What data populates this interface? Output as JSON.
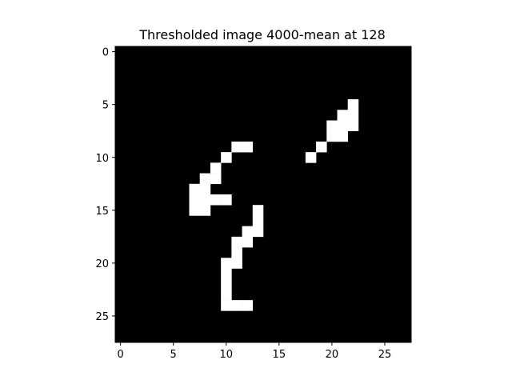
{
  "chart_data": {
    "type": "heatmap",
    "title": "Thresholded image 4000-mean at 128",
    "xlabel": "",
    "ylabel": "",
    "width": 28,
    "height": 28,
    "colormap": "gray",
    "foreground_color": "#ffffff",
    "background_color": "#000000",
    "x_ticks": [
      0,
      5,
      10,
      15,
      20,
      25
    ],
    "y_ticks": [
      0,
      5,
      10,
      15,
      20,
      25
    ],
    "xlim": [
      -0.5,
      27.5
    ],
    "ylim": [
      27.5,
      -0.5
    ],
    "grid": false,
    "white_pixels": [
      [
        5,
        22
      ],
      [
        6,
        21
      ],
      [
        6,
        22
      ],
      [
        7,
        20
      ],
      [
        7,
        21
      ],
      [
        7,
        22
      ],
      [
        8,
        20
      ],
      [
        8,
        21
      ],
      [
        9,
        11
      ],
      [
        9,
        12
      ],
      [
        9,
        19
      ],
      [
        10,
        10
      ],
      [
        10,
        18
      ],
      [
        11,
        9
      ],
      [
        12,
        8
      ],
      [
        12,
        9
      ],
      [
        13,
        7
      ],
      [
        13,
        8
      ],
      [
        14,
        7
      ],
      [
        14,
        8
      ],
      [
        14,
        9
      ],
      [
        14,
        10
      ],
      [
        15,
        7
      ],
      [
        15,
        8
      ],
      [
        15,
        13
      ],
      [
        16,
        13
      ],
      [
        17,
        12
      ],
      [
        17,
        13
      ],
      [
        18,
        11
      ],
      [
        18,
        12
      ],
      [
        19,
        11
      ],
      [
        20,
        10
      ],
      [
        20,
        11
      ],
      [
        21,
        10
      ],
      [
        22,
        10
      ],
      [
        23,
        10
      ],
      [
        24,
        10
      ],
      [
        24,
        11
      ],
      [
        24,
        12
      ]
    ]
  }
}
